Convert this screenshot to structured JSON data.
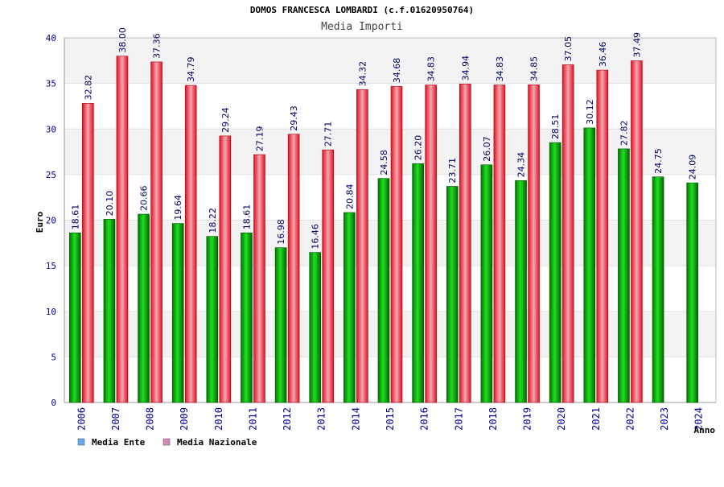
{
  "chart_data": {
    "type": "bar",
    "title": "DOMOS FRANCESCA LOMBARDI (c.f.01620950764)",
    "subtitle": "Media Importi",
    "ylabel": "Euro",
    "xlabel": "Anno",
    "ylim": [
      0,
      40
    ],
    "yticks": [
      0,
      5,
      10,
      15,
      20,
      25,
      30,
      35,
      40
    ],
    "grid": true,
    "legend_position": "bottom-left",
    "categories": [
      "2006",
      "2007",
      "2008",
      "2009",
      "2010",
      "2011",
      "2012",
      "2013",
      "2014",
      "2015",
      "2016",
      "2017",
      "2018",
      "2019",
      "2020",
      "2021",
      "2022",
      "2023",
      "2024"
    ],
    "series": [
      {
        "name": "Media Ente",
        "color": "#00aa00",
        "legend_color": "#66aaee",
        "values": [
          18.61,
          20.1,
          20.66,
          19.64,
          18.22,
          18.61,
          16.98,
          16.46,
          20.84,
          24.58,
          26.2,
          23.71,
          26.07,
          24.34,
          28.51,
          30.12,
          27.82,
          24.75,
          24.09
        ],
        "labels": [
          "18.61",
          "20.10",
          "20.66",
          "19.64",
          "18.22",
          "18.61",
          "16.98",
          "16.46",
          "20.84",
          "24.58",
          "26.20",
          "23.71",
          "26.07",
          "24.34",
          "28.51",
          "30.12",
          "27.82",
          "24.75",
          "24.09"
        ]
      },
      {
        "name": "Media Nazionale",
        "color": "#ee2233",
        "legend_color": "#dd88bb",
        "values": [
          32.82,
          38.0,
          37.36,
          34.79,
          29.24,
          27.19,
          29.43,
          27.71,
          34.32,
          34.68,
          34.83,
          34.94,
          34.83,
          34.85,
          37.05,
          36.46,
          37.49,
          null,
          null
        ],
        "labels": [
          "32.82",
          "38.00",
          "37.36",
          "34.79",
          "29.24",
          "27.19",
          "29.43",
          "27.71",
          "34.32",
          "34.68",
          "34.83",
          "34.94",
          "34.83",
          "34.85",
          "37.05",
          "36.46",
          "37.49",
          null,
          null
        ]
      }
    ]
  }
}
